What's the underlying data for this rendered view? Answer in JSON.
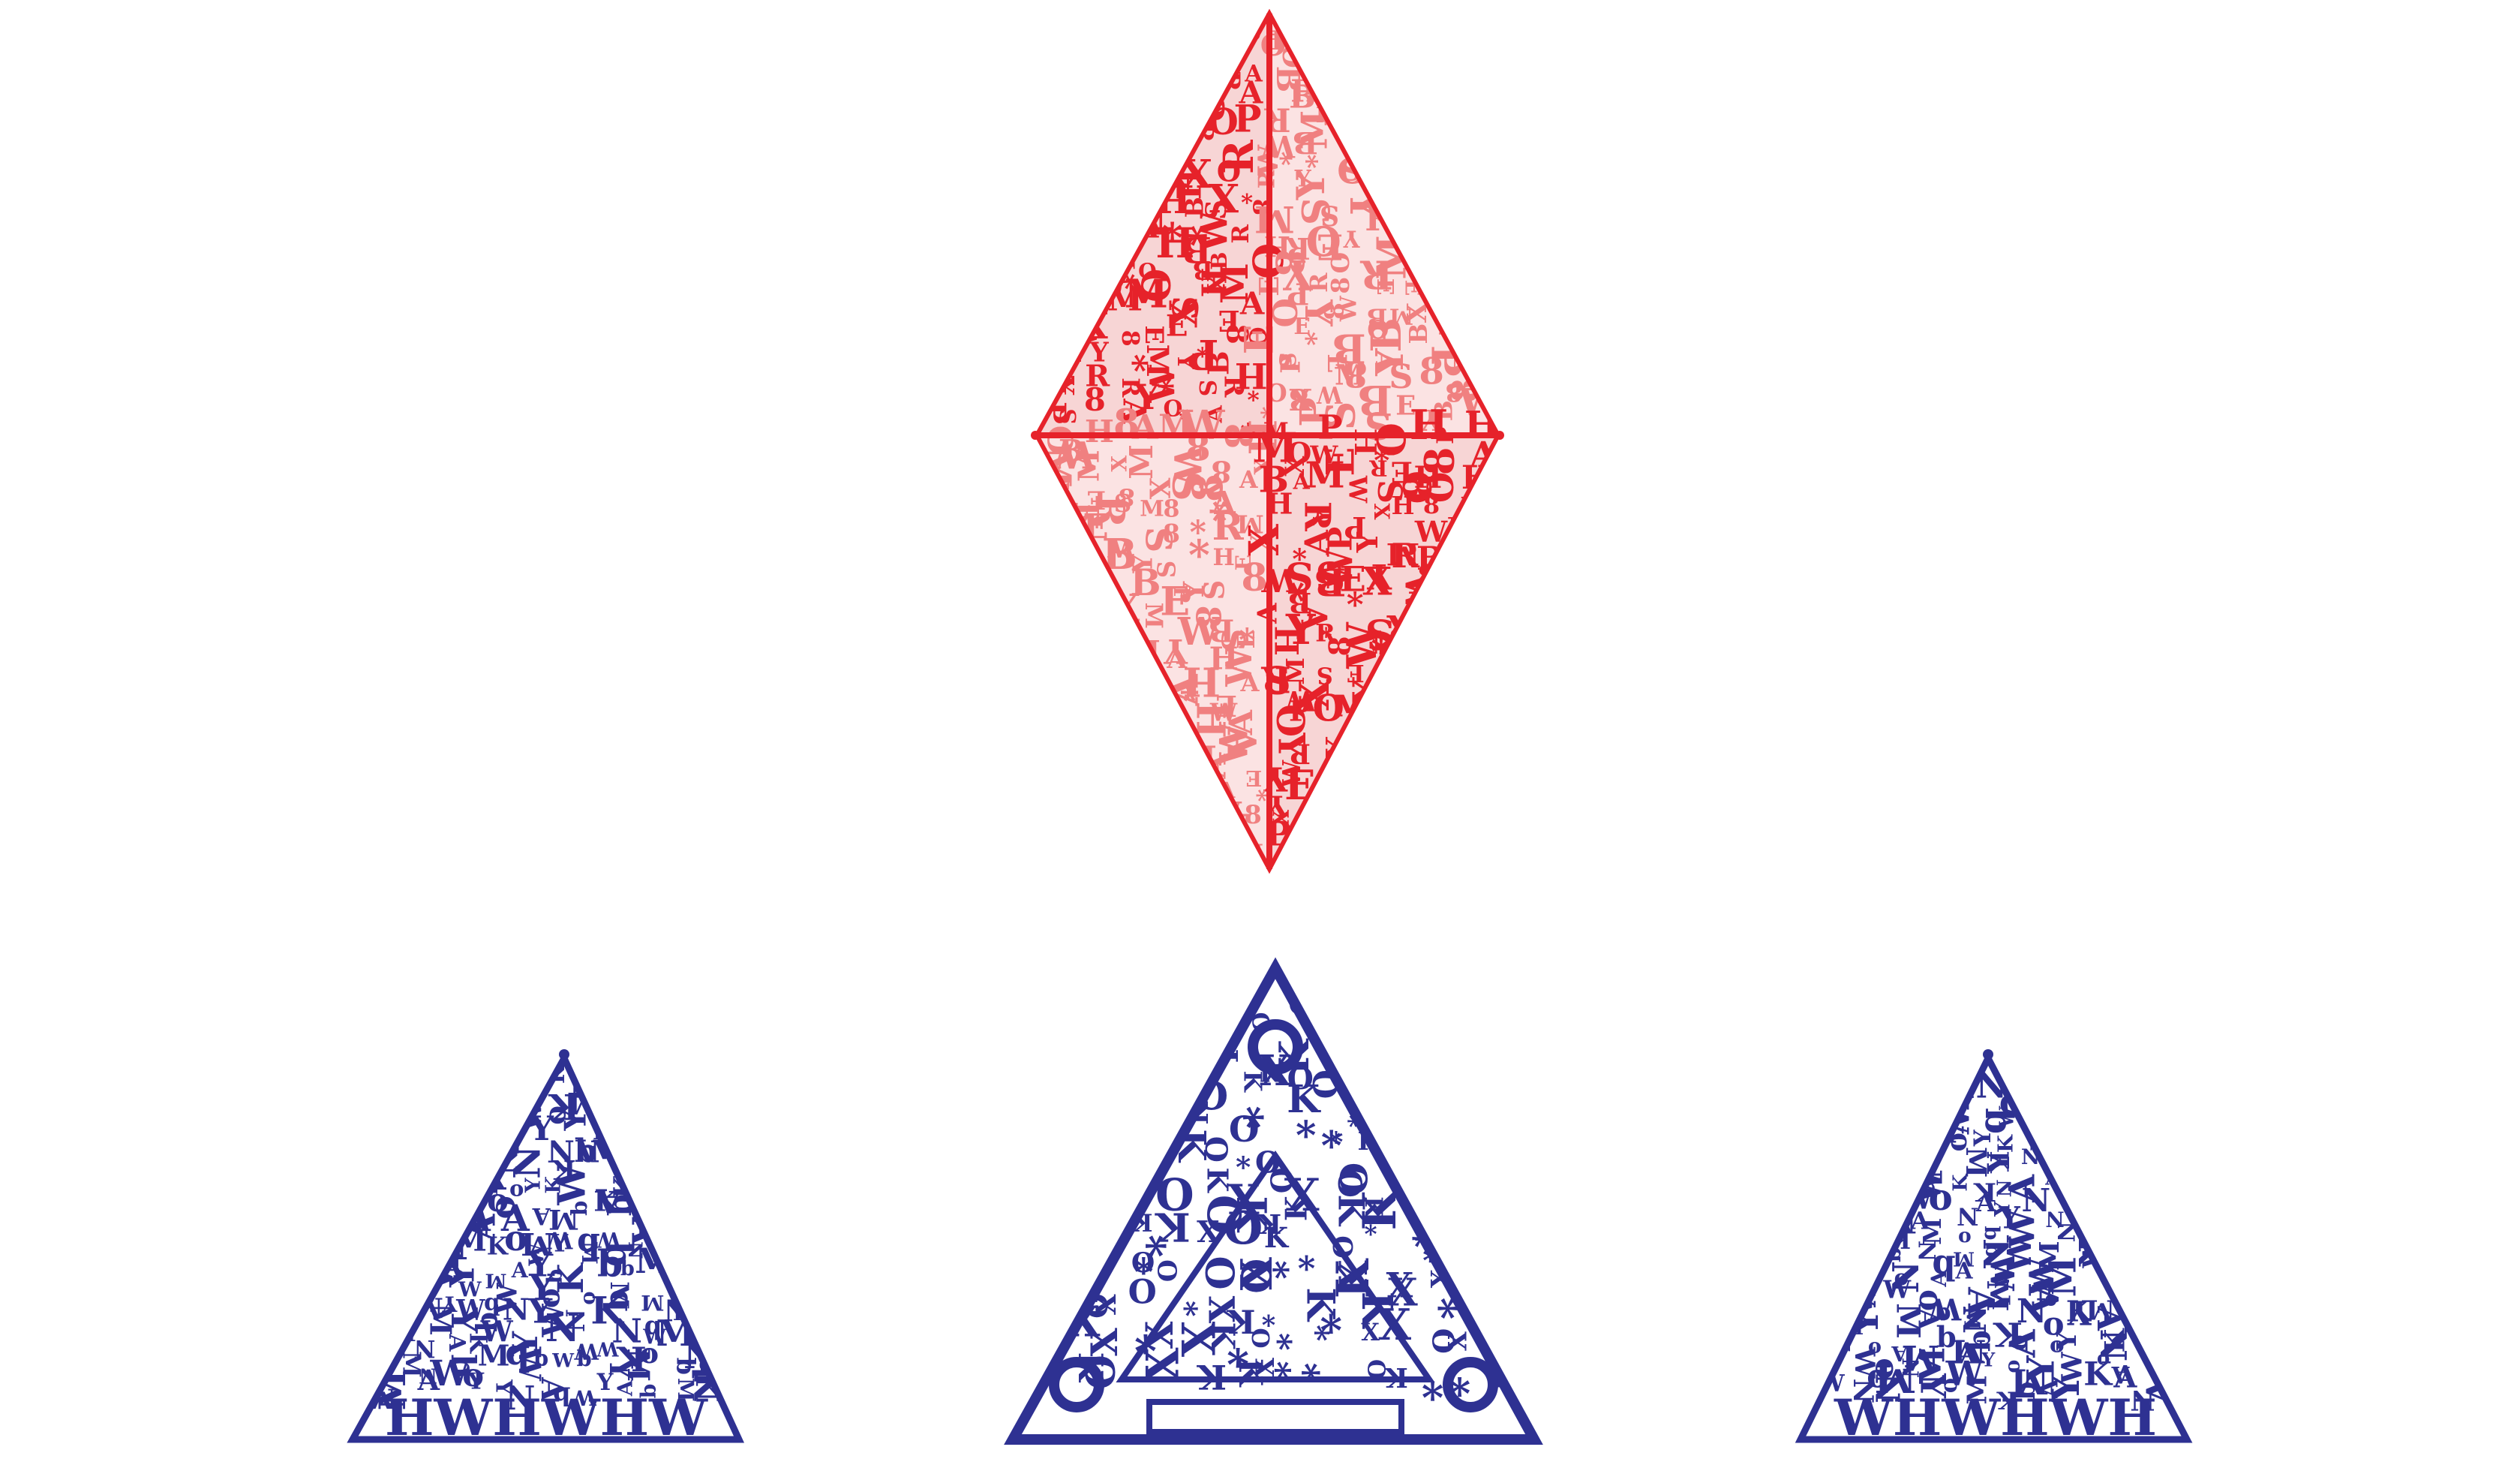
{
  "artwork": {
    "diamond": {
      "glyphs": [
        "B",
        "M",
        "E",
        "R",
        "W",
        "P",
        "A",
        "S",
        "8",
        "X",
        "O",
        "Y",
        "H",
        "*"
      ],
      "colors": {
        "dark": "#e6222a",
        "light": "#f08080"
      }
    },
    "triangles": {
      "left": {
        "bottom_text": "HWHWHW",
        "glyphs": [
          "K",
          "N",
          "A",
          "Y",
          "W",
          "M",
          "b",
          "o"
        ]
      },
      "center": {
        "bottom_text": "",
        "glyphs": [
          "O",
          "*",
          "K",
          "X"
        ]
      },
      "right": {
        "bottom_text": "WHWHWH",
        "glyphs": [
          "K",
          "N",
          "A",
          "Y",
          "W",
          "M",
          "b",
          "o"
        ]
      },
      "color": "#2e3192"
    }
  }
}
